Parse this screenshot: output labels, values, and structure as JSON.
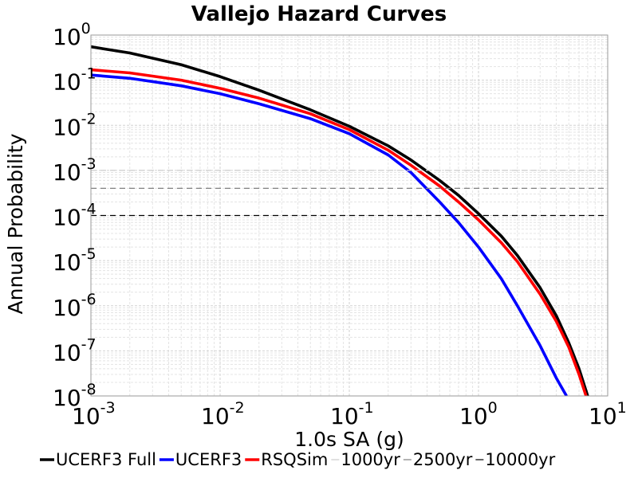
{
  "chart_data": {
    "type": "line",
    "title": "Vallejo Hazard Curves",
    "xlabel": "1.0s SA (g)",
    "ylabel": "Annual Probability",
    "x_scale": "log",
    "y_scale": "log",
    "xlim": [
      0.001,
      10
    ],
    "ylim": [
      1e-08,
      1
    ],
    "grid": true,
    "legend_position": "bottom",
    "x_ticks": [
      {
        "base": "10",
        "exp": "-3",
        "value": 0.001
      },
      {
        "base": "10",
        "exp": "-2",
        "value": 0.01
      },
      {
        "base": "10",
        "exp": "-1",
        "value": 0.1
      },
      {
        "base": "10",
        "exp": "0",
        "value": 1
      },
      {
        "base": "10",
        "exp": "1",
        "value": 10
      }
    ],
    "y_ticks": [
      {
        "base": "10",
        "exp": "0",
        "value": 1
      },
      {
        "base": "10",
        "exp": "-1",
        "value": 0.1
      },
      {
        "base": "10",
        "exp": "-2",
        "value": 0.01
      },
      {
        "base": "10",
        "exp": "-3",
        "value": 0.001
      },
      {
        "base": "10",
        "exp": "-4",
        "value": 0.0001
      },
      {
        "base": "10",
        "exp": "-5",
        "value": 1e-05
      },
      {
        "base": "10",
        "exp": "-6",
        "value": 1e-06
      },
      {
        "base": "10",
        "exp": "-7",
        "value": 1e-07
      },
      {
        "base": "10",
        "exp": "-8",
        "value": 1e-08
      }
    ],
    "series": [
      {
        "name": "UCERF3 Full",
        "color": "#000000",
        "style": "solid",
        "x": [
          0.001,
          0.002,
          0.005,
          0.01,
          0.02,
          0.05,
          0.1,
          0.2,
          0.3,
          0.5,
          0.7,
          1.0,
          1.5,
          2.0,
          3.0,
          4.0,
          5.0,
          6.0,
          7.0
        ],
        "y": [
          0.55,
          0.4,
          0.22,
          0.12,
          0.06,
          0.022,
          0.0095,
          0.0035,
          0.0017,
          0.0006,
          0.00028,
          0.00011,
          3.5e-05,
          1.3e-05,
          2.5e-06,
          6e-07,
          1.5e-07,
          4e-08,
          1e-08
        ]
      },
      {
        "name": "UCERF3",
        "color": "#0000ff",
        "style": "solid",
        "x": [
          0.001,
          0.002,
          0.005,
          0.01,
          0.02,
          0.05,
          0.1,
          0.2,
          0.3,
          0.5,
          0.7,
          1.0,
          1.5,
          2.0,
          3.0,
          4.0,
          4.8
        ],
        "y": [
          0.13,
          0.11,
          0.075,
          0.05,
          0.03,
          0.014,
          0.0065,
          0.0022,
          0.0009,
          0.0002,
          7e-05,
          2e-05,
          4e-06,
          1e-06,
          1.3e-07,
          2.5e-08,
          1e-08
        ]
      },
      {
        "name": "RSQSim",
        "color": "#ff0000",
        "style": "solid",
        "x": [
          0.001,
          0.002,
          0.005,
          0.01,
          0.02,
          0.05,
          0.1,
          0.2,
          0.3,
          0.5,
          0.7,
          1.0,
          1.5,
          2.0,
          3.0,
          4.0,
          5.0,
          6.0,
          6.8
        ],
        "y": [
          0.17,
          0.145,
          0.1,
          0.066,
          0.04,
          0.018,
          0.008,
          0.0028,
          0.0013,
          0.00045,
          0.0002,
          8e-05,
          2.5e-05,
          9.5e-06,
          1.8e-06,
          4.5e-07,
          1.2e-07,
          3e-08,
          1e-08
        ]
      },
      {
        "name": "1000yr",
        "color": "#cccccc",
        "style": "dashed",
        "x": [
          0.001,
          10
        ],
        "y": [
          0.001,
          0.001
        ]
      },
      {
        "name": "2500yr",
        "color": "#808080",
        "style": "dashed",
        "x": [
          0.001,
          10
        ],
        "y": [
          0.0004,
          0.0004
        ]
      },
      {
        "name": "10000yr",
        "color": "#000000",
        "style": "dashed",
        "x": [
          0.001,
          10
        ],
        "y": [
          0.0001,
          0.0001
        ]
      }
    ]
  }
}
